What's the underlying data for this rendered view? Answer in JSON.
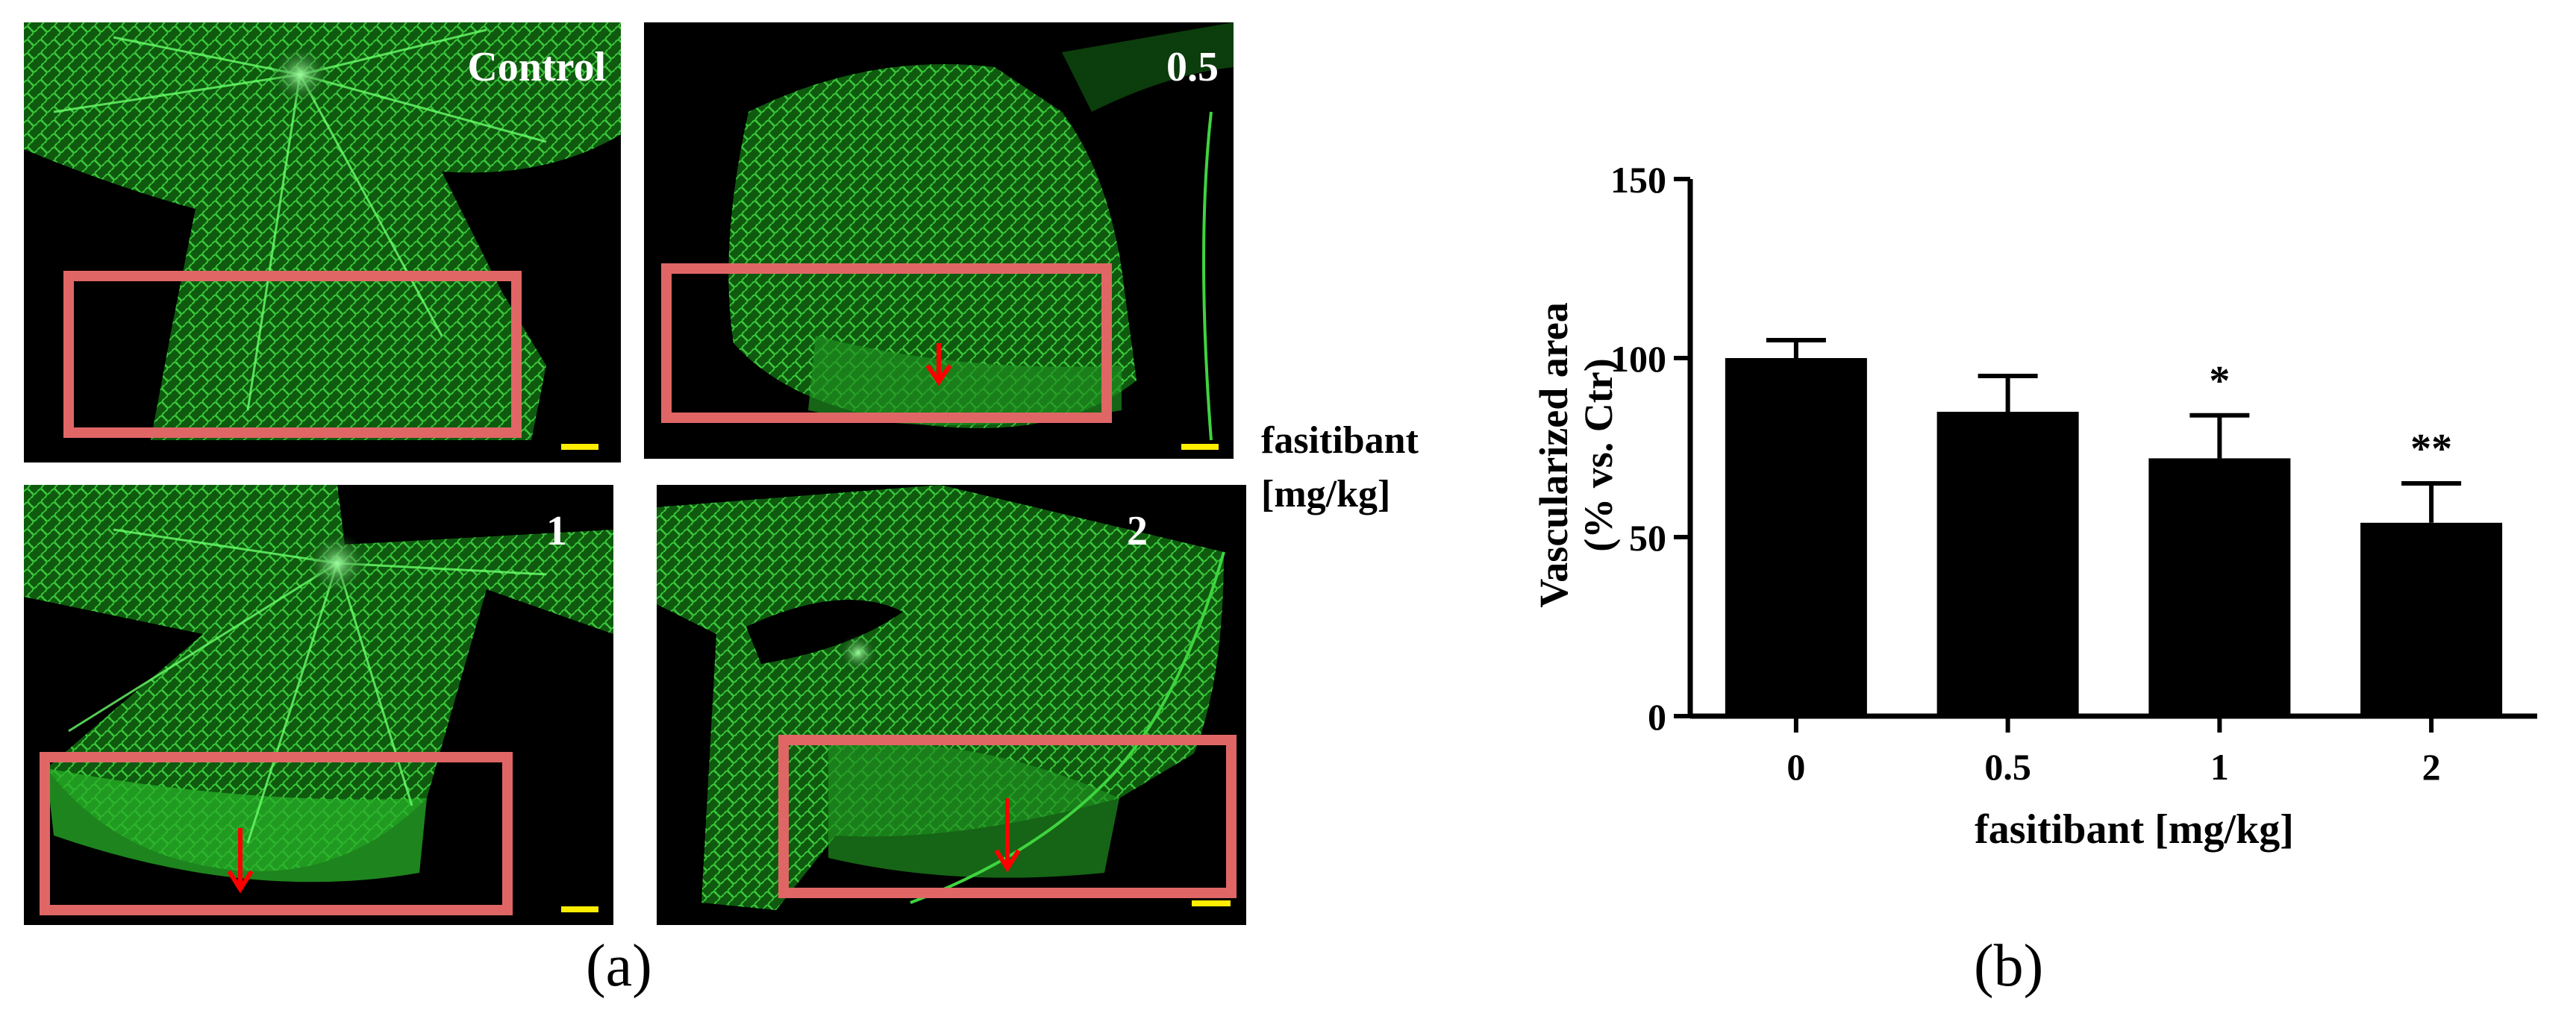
{
  "panel_a": {
    "panels": [
      {
        "label": "Control",
        "arrow": false
      },
      {
        "label": "0.5",
        "arrow": true
      },
      {
        "label": "1",
        "arrow": true
      },
      {
        "label": "2",
        "arrow": true
      }
    ],
    "side_label_line1": "fasitibant",
    "side_label_line2": "[mg/kg]",
    "caption": "(a)",
    "colors": {
      "vessel": "#3fd43f",
      "box": "#e06666",
      "arrow": "#ff0000",
      "scale_bar": "#ffee00"
    }
  },
  "panel_b": {
    "caption": "(b)"
  },
  "chart_data": {
    "type": "bar",
    "categories": [
      "0",
      "0.5",
      "1",
      "2"
    ],
    "values": [
      100,
      85,
      72,
      54
    ],
    "errors": [
      5,
      10,
      12,
      11
    ],
    "significance": [
      "",
      "",
      "*",
      "**"
    ],
    "xlabel": "fasitibant [mg/kg]",
    "ylabel_line1": "Vascularized area",
    "ylabel_line2": "(% vs. Ctr)",
    "ylim": [
      0,
      150
    ],
    "yticks": [
      "0",
      "50",
      "100",
      "150"
    ],
    "bar_color": "#000000",
    "grid": false,
    "legend": "none"
  }
}
